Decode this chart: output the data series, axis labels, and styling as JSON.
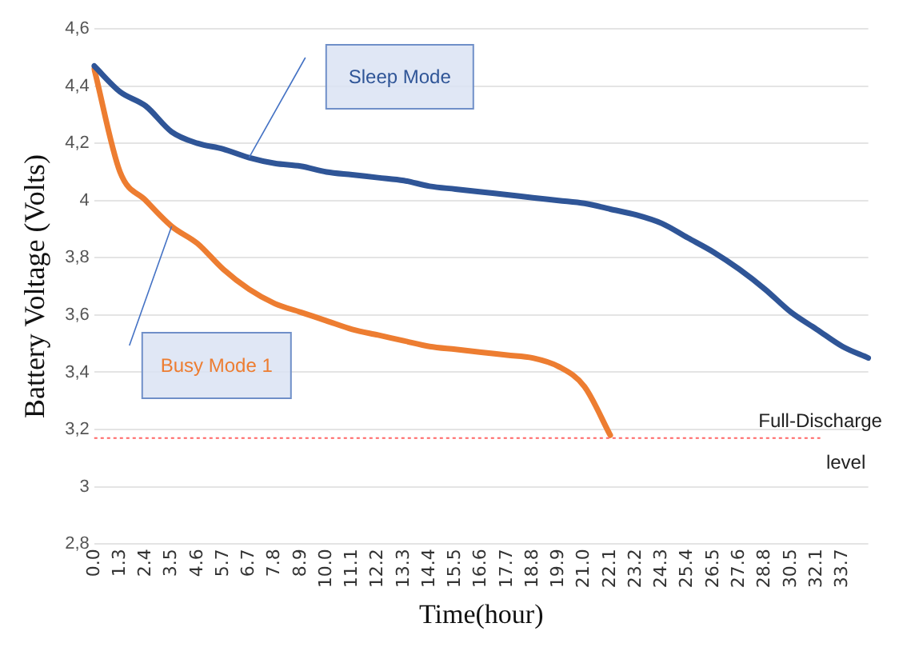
{
  "chart_data": {
    "type": "line",
    "xlabel": "Time(hour)",
    "ylabel": "Battery Voltage (Volts)",
    "categories": [
      "0.0",
      "1.3",
      "2.4",
      "3.5",
      "4.6",
      "5.7",
      "6.7",
      "7.8",
      "8.9",
      "10.0",
      "11.1",
      "12.2",
      "13.3",
      "14.4",
      "15.5",
      "16.6",
      "17.7",
      "18.8",
      "19.9",
      "21.0",
      "22.1",
      "23.2",
      "24.3",
      "25.4",
      "26.5",
      "27.6",
      "28.8",
      "30.5",
      "32.1",
      "33.7",
      null
    ],
    "series": [
      {
        "name": "Sleep Mode",
        "color": "#2f5597",
        "values": [
          4.47,
          4.38,
          4.33,
          4.24,
          4.2,
          4.18,
          4.15,
          4.13,
          4.12,
          4.1,
          4.09,
          4.08,
          4.07,
          4.05,
          4.04,
          4.03,
          4.02,
          4.01,
          4.0,
          3.99,
          3.97,
          3.95,
          3.92,
          3.87,
          3.82,
          3.76,
          3.69,
          3.61,
          3.55,
          3.49,
          3.45
        ]
      },
      {
        "name": "Busy Mode 1",
        "color": "#ed7d31",
        "values": [
          4.46,
          4.1,
          4.0,
          3.91,
          3.85,
          3.76,
          3.69,
          3.64,
          3.61,
          3.58,
          3.55,
          3.53,
          3.51,
          3.49,
          3.48,
          3.47,
          3.46,
          3.45,
          3.42,
          3.35,
          3.18,
          null,
          null,
          null,
          null,
          null,
          null,
          null,
          null,
          null,
          null
        ]
      }
    ],
    "ylim": [
      2.8,
      4.6
    ],
    "yticks": [
      {
        "value": 2.8,
        "label": "2,8"
      },
      {
        "value": 3,
        "label": "3"
      },
      {
        "value": 3.2,
        "label": "3,2"
      },
      {
        "value": 3.4,
        "label": "3,4"
      },
      {
        "value": 3.6,
        "label": "3,6"
      },
      {
        "value": 3.8,
        "label": "3,8"
      },
      {
        "value": 4,
        "label": "4"
      },
      {
        "value": 4.2,
        "label": "4,2"
      },
      {
        "value": 4.4,
        "label": "4,4"
      },
      {
        "value": 4.6,
        "label": "4,6"
      }
    ],
    "ref_lines": [
      {
        "axis": "y",
        "value": 3.17,
        "label": "Full-Discharge level",
        "color": "#ff6666",
        "line_style": "dashed"
      }
    ],
    "grid": "y",
    "legend": false,
    "marker": "none",
    "line_style": "solid"
  }
}
